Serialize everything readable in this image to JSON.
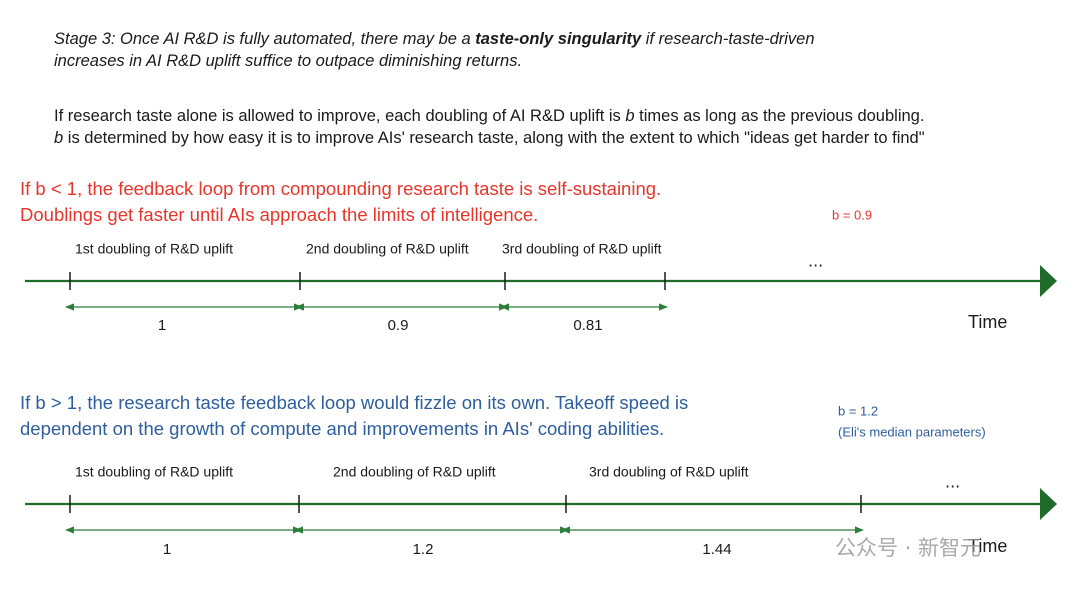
{
  "stage": {
    "lines": [
      [
        {
          "text": "Stage 3: Once AI R&D is fully automated, there may be a "
        },
        {
          "text": "taste-only singularity",
          "bold": true
        },
        {
          "text": " if research-taste-driven"
        }
      ],
      [
        {
          "text": "increases in AI R&D uplift suffice to outpace diminishing returns."
        }
      ]
    ]
  },
  "explanation": {
    "lines": [
      [
        {
          "text": "If research taste alone is allowed to improve, each doubling of AI R&D uplift is "
        },
        {
          "text": "b",
          "italic": true
        },
        {
          "text": " times as long as the previous doubling."
        }
      ],
      [
        {
          "text": "b",
          "italic": true
        },
        {
          "text": " is determined by how easy it is to improve AIs' research taste, along with the extent to which \"ideas get harder to find\""
        }
      ]
    ]
  },
  "scenarios": [
    {
      "heading": [
        "If b < 1, the feedback loop from compounding research taste is self-sustaining.",
        "Doublings get faster until AIs approach the limits of intelligence."
      ],
      "parameter": [
        "b = 0.9"
      ],
      "segments": [
        {
          "label": "1st doubling of R&D uplift",
          "duration": "1"
        },
        {
          "label": "2nd doubling of R&D uplift",
          "duration": "0.9"
        },
        {
          "label": "3rd doubling of R&D uplift",
          "duration": "0.81"
        }
      ],
      "ellipsis": "...",
      "axis_label": "Time"
    },
    {
      "heading": [
        "If b > 1, the research taste feedback loop would fizzle on its own. Takeoff speed is",
        "dependent on the growth of compute and improvements in AIs' coding abilities."
      ],
      "parameter": [
        "b = 1.2",
        "(Eli's median parameters)"
      ],
      "segments": [
        {
          "label": "1st doubling of R&D uplift",
          "duration": "1"
        },
        {
          "label": "2nd doubling of R&D uplift",
          "duration": "1.2"
        },
        {
          "label": "3rd doubling of R&D uplift",
          "duration": "1.44"
        }
      ],
      "ellipsis": "...",
      "axis_label": "Time"
    }
  ],
  "watermark": "公众号 · 新智元"
}
